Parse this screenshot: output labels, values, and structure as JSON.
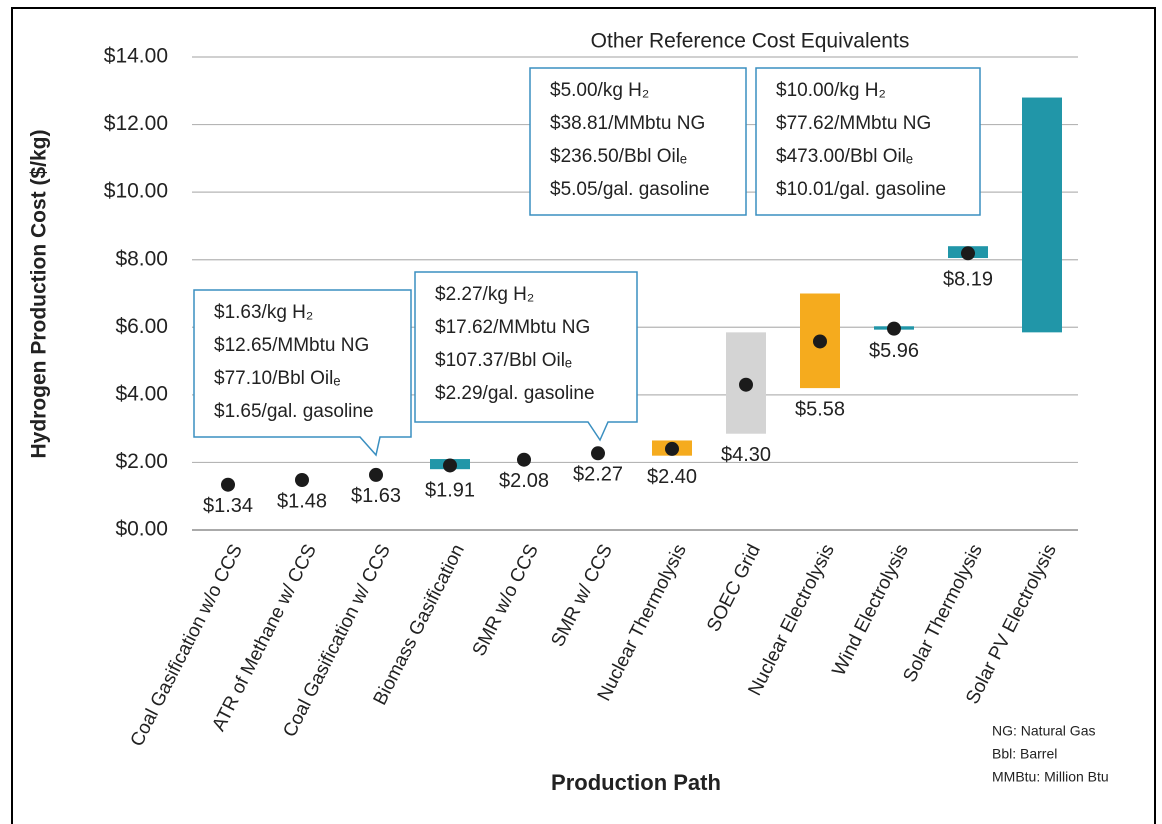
{
  "chart_data": {
    "type": "range-point",
    "ylabel": "Hydrogen Production Cost ($/kg)",
    "xlabel": "Production Path",
    "categories": [
      "Coal Gasification w/o CCS",
      "ATR of Methane w/ CCS",
      "Coal Gasification w/ CCS",
      "Biomass Gasification",
      "SMR w/o CCS",
      "SMR w/ CCS",
      "Nuclear Thermolysis",
      "SOEC Grid",
      "Nuclear Electrolysis",
      "Wind Electrolysis",
      "Solar Thermolysis",
      "Solar PV Electrolysis"
    ],
    "values": [
      1.34,
      1.48,
      1.63,
      1.91,
      2.08,
      2.27,
      2.4,
      4.3,
      5.58,
      5.96,
      8.19,
      null
    ],
    "value_labels": [
      "$1.34",
      "$1.48",
      "$1.63",
      "$1.91",
      "$2.08",
      "$2.27",
      "$2.40",
      "$4.30",
      "$5.58",
      "$5.96",
      "$8.19",
      null
    ],
    "low": [
      null,
      null,
      null,
      1.8,
      null,
      null,
      2.2,
      2.85,
      4.2,
      5.93,
      8.05,
      5.85
    ],
    "high": [
      null,
      null,
      null,
      2.1,
      null,
      null,
      2.65,
      5.85,
      7.0,
      6.03,
      8.4,
      12.8
    ],
    "range_colors": [
      null,
      null,
      null,
      "#2196a8",
      null,
      null,
      "#f5ab1e",
      "#d4d4d4",
      "#f5ab1e",
      "#2196a8",
      "#2196a8",
      "#2196a8"
    ],
    "point_color": "#1b1b1b",
    "ylim": [
      0,
      14
    ],
    "yticks": [
      {
        "value": 0,
        "label": "$0.00"
      },
      {
        "value": 2,
        "label": "$2.00"
      },
      {
        "value": 4,
        "label": "$4.00"
      },
      {
        "value": 6,
        "label": "$6.00"
      },
      {
        "value": 8,
        "label": "$8.00"
      },
      {
        "value": 10,
        "label": "$10.00"
      },
      {
        "value": 12,
        "label": "$12.00"
      },
      {
        "value": 14,
        "label": "$14.00"
      }
    ],
    "grid": true,
    "reference_title": "Other Reference Cost Equivalents",
    "annotations": [
      {
        "lines": [
          "$1.63/kg H₂",
          "$12.65/MMbtu NG",
          "$77.10/Bbl Oilₑ",
          "$1.65/gal. gasoline"
        ]
      },
      {
        "lines": [
          "$2.27/kg H₂",
          "$17.62/MMbtu NG",
          "$107.37/Bbl Oilₑ",
          "$2.29/gal. gasoline"
        ]
      },
      {
        "lines": [
          "$5.00/kg H₂",
          "$38.81/MMbtu NG",
          "$236.50/Bbl Oilₑ",
          "$5.05/gal. gasoline"
        ]
      },
      {
        "lines": [
          "$10.00/kg H₂",
          "$77.62/MMbtu NG",
          "$473.00/Bbl Oilₑ",
          "$10.01/gal. gasoline"
        ]
      }
    ],
    "notes": [
      "NG: Natural Gas",
      "Bbl: Barrel",
      "MMBtu: Million Btu"
    ]
  }
}
